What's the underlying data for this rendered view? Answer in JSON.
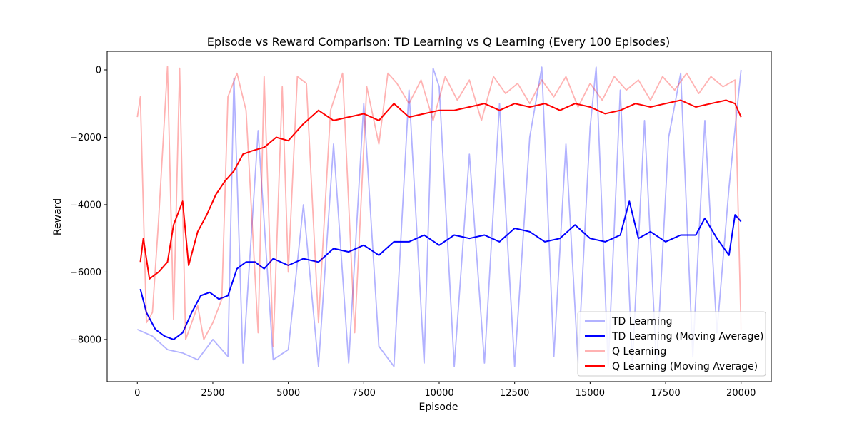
{
  "chart_data": {
    "type": "line",
    "title": "Episode vs Reward Comparison: TD Learning vs Q Learning (Every 100 Episodes)",
    "xlabel": "Episode",
    "ylabel": "Reward",
    "xlim": [
      -1000,
      21000
    ],
    "ylim": [
      -9250,
      550
    ],
    "xticks": [
      0,
      2500,
      5000,
      7500,
      10000,
      12500,
      15000,
      17500,
      20000
    ],
    "yticks": [
      -8000,
      -6000,
      -4000,
      -2000,
      0
    ],
    "xtick_labels": [
      "0",
      "2500",
      "5000",
      "7500",
      "10000",
      "12500",
      "15000",
      "17500",
      "20000"
    ],
    "ytick_labels": [
      "−8000",
      "−6000",
      "−4000",
      "−2000",
      "0"
    ],
    "grid": false,
    "legend_position": "lower-right",
    "series": [
      {
        "name": "TD Learning",
        "color": "#0000ff",
        "alpha": 0.3,
        "x": [
          0,
          500,
          1000,
          1500,
          2000,
          2500,
          3000,
          3200,
          3500,
          4000,
          4500,
          5000,
          5500,
          6000,
          6500,
          7000,
          7500,
          8000,
          8500,
          9000,
          9500,
          9800,
          10000,
          10500,
          11000,
          11500,
          12000,
          12500,
          13000,
          13400,
          13800,
          14200,
          14600,
          15000,
          15200,
          15600,
          16000,
          16400,
          16800,
          17200,
          17600,
          18000,
          18400,
          18800,
          19200,
          19600,
          20000
        ],
        "values": [
          -7700,
          -7900,
          -8300,
          -8400,
          -8600,
          -8000,
          -8500,
          -250,
          -8700,
          -1800,
          -8600,
          -8300,
          -4000,
          -8800,
          -2200,
          -8700,
          -1000,
          -8200,
          -8800,
          -600,
          -8700,
          50,
          -500,
          -8800,
          -2500,
          -8700,
          -1000,
          -8800,
          -2000,
          80,
          -8500,
          -2200,
          -8700,
          -1700,
          80,
          -8800,
          -600,
          -8700,
          -1500,
          -8800,
          -2000,
          -100,
          -8500,
          -1500,
          -7800,
          -3500,
          0
        ]
      },
      {
        "name": "TD Learning (Moving Average)",
        "color": "#0000ff",
        "alpha": 1,
        "x": [
          100,
          300,
          600,
          900,
          1200,
          1500,
          1800,
          2100,
          2400,
          2700,
          3000,
          3300,
          3600,
          3900,
          4200,
          4500,
          5000,
          5500,
          6000,
          6500,
          7000,
          7500,
          8000,
          8500,
          9000,
          9500,
          10000,
          10500,
          11000,
          11500,
          12000,
          12500,
          13000,
          13500,
          14000,
          14500,
          15000,
          15500,
          16000,
          16300,
          16600,
          17000,
          17500,
          18000,
          18500,
          18800,
          19200,
          19600,
          19800,
          20000
        ],
        "values": [
          -6500,
          -7200,
          -7700,
          -7900,
          -8000,
          -7800,
          -7200,
          -6700,
          -6600,
          -6800,
          -6700,
          -5900,
          -5700,
          -5700,
          -5900,
          -5600,
          -5800,
          -5600,
          -5700,
          -5300,
          -5400,
          -5200,
          -5500,
          -5100,
          -5100,
          -4900,
          -5200,
          -4900,
          -5000,
          -4900,
          -5100,
          -4700,
          -4800,
          -5100,
          -5000,
          -4600,
          -5000,
          -5100,
          -4900,
          -3900,
          -5000,
          -4800,
          -5100,
          -4900,
          -4900,
          -4400,
          -5000,
          -5500,
          -4300,
          -4500
        ]
      },
      {
        "name": "Q Learning",
        "color": "#ff0000",
        "alpha": 0.3,
        "x": [
          0,
          100,
          300,
          500,
          700,
          1000,
          1200,
          1400,
          1600,
          1800,
          2000,
          2200,
          2500,
          2800,
          3000,
          3300,
          3600,
          4000,
          4200,
          4500,
          4800,
          5000,
          5300,
          5600,
          6000,
          6400,
          6800,
          7200,
          7600,
          8000,
          8300,
          8600,
          9000,
          9400,
          9800,
          10200,
          10600,
          11000,
          11400,
          11800,
          12200,
          12600,
          13000,
          13400,
          13800,
          14200,
          14600,
          15000,
          15400,
          15800,
          16200,
          16600,
          17000,
          17400,
          17800,
          18200,
          18600,
          19000,
          19400,
          19800,
          20000
        ],
        "values": [
          -1400,
          -800,
          -7500,
          -7200,
          -4500,
          100,
          -7400,
          50,
          -8000,
          -7500,
          -7000,
          -8000,
          -7500,
          -6800,
          -800,
          -100,
          -1200,
          -7800,
          -200,
          -8200,
          -500,
          -6000,
          -200,
          -400,
          -7500,
          -1200,
          -100,
          -7800,
          -500,
          -2200,
          -100,
          -400,
          -1000,
          -300,
          -1500,
          -200,
          -900,
          -300,
          -1500,
          -200,
          -700,
          -400,
          -1000,
          -300,
          -800,
          -200,
          -1100,
          -400,
          -900,
          -200,
          -600,
          -300,
          -900,
          -200,
          -600,
          -100,
          -700,
          -200,
          -500,
          -300,
          -7700
        ]
      },
      {
        "name": "Q Learning (Moving Average)",
        "color": "#ff0000",
        "alpha": 1,
        "x": [
          100,
          200,
          400,
          700,
          1000,
          1200,
          1500,
          1700,
          2000,
          2300,
          2600,
          2900,
          3200,
          3500,
          3800,
          4200,
          4600,
          5000,
          5500,
          6000,
          6500,
          7000,
          7500,
          8000,
          8500,
          9000,
          9500,
          10000,
          10500,
          11000,
          11500,
          12000,
          12500,
          13000,
          13500,
          14000,
          14500,
          15000,
          15500,
          16000,
          16500,
          17000,
          17500,
          18000,
          18500,
          19000,
          19500,
          19800,
          20000
        ],
        "values": [
          -5700,
          -5000,
          -6200,
          -6000,
          -5700,
          -4600,
          -3900,
          -5800,
          -4800,
          -4300,
          -3700,
          -3300,
          -3000,
          -2500,
          -2400,
          -2300,
          -2000,
          -2100,
          -1600,
          -1200,
          -1500,
          -1400,
          -1300,
          -1500,
          -1000,
          -1400,
          -1300,
          -1200,
          -1200,
          -1100,
          -1000,
          -1200,
          -1000,
          -1100,
          -1000,
          -1200,
          -1000,
          -1100,
          -1300,
          -1200,
          -1000,
          -1100,
          -1000,
          -900,
          -1100,
          -1000,
          -900,
          -1000,
          -1400
        ]
      }
    ]
  }
}
